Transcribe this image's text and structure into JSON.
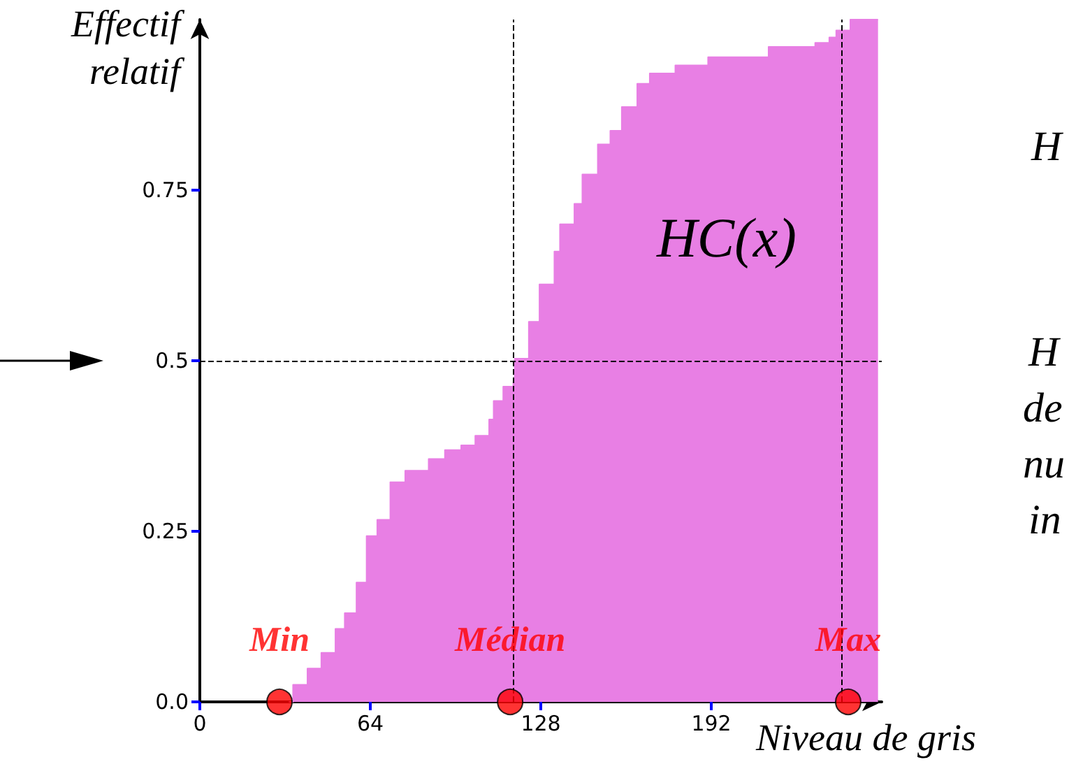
{
  "chart_data": {
    "type": "area",
    "xlabel": "Niveau de gris",
    "ylabel": "Effectif\nrelatif",
    "xlim": [
      0,
      256
    ],
    "xticks": [
      0,
      64,
      128,
      192
    ],
    "ylim": [
      0,
      1
    ],
    "yticks": [
      {
        "value": 0,
        "label": "0.0"
      },
      0.25,
      0.5,
      0.75
    ],
    "grid": false,
    "series": [
      {
        "color": "#e87fe4",
        "x": [
          33.4,
          35,
          35,
          40.4,
          40.4,
          45.6,
          45.6,
          50.9,
          50.9,
          54.4,
          54.4,
          58.8,
          58.8,
          62.6,
          62.6,
          66.6,
          66.6,
          71.5,
          71.5,
          77.1,
          77.1,
          85.9,
          85.9,
          92,
          92,
          98.1,
          98.1,
          103.4,
          103.4,
          108.6,
          108.6,
          110.3,
          110.3,
          113.9,
          113.9,
          117.7,
          117.7,
          118.2,
          118.2,
          123.5,
          123.5,
          127.5,
          127.5,
          133.1,
          133.1,
          135.2,
          135.2,
          140.6,
          140.6,
          143.6,
          143.6,
          149.4,
          149.4,
          154.1,
          154.1,
          158.4,
          158.4,
          164.2,
          164.2,
          168.9,
          168.9,
          178.5,
          178.5,
          190.8,
          190.8,
          213.5,
          213.5,
          231,
          231,
          236.3,
          236.3,
          238.9,
          238.9,
          244.2,
          244.2,
          254.6
        ],
        "values": [
          0,
          0,
          0.025,
          0.025,
          0.049,
          0.049,
          0.072,
          0.072,
          0.107,
          0.107,
          0.13,
          0.13,
          0.175,
          0.175,
          0.243,
          0.243,
          0.267,
          0.267,
          0.322,
          0.322,
          0.339,
          0.339,
          0.356,
          0.356,
          0.369,
          0.369,
          0.376,
          0.376,
          0.39,
          0.39,
          0.414,
          0.414,
          0.441,
          0.441,
          0.462,
          0.462,
          0.469,
          0.469,
          0.503,
          0.503,
          0.557,
          0.557,
          0.612,
          0.612,
          0.66,
          0.66,
          0.7,
          0.7,
          0.73,
          0.73,
          0.773,
          0.773,
          0.817,
          0.817,
          0.837,
          0.837,
          0.872,
          0.872,
          0.906,
          0.906,
          0.921,
          0.921,
          0.933,
          0.933,
          0.945,
          0.945,
          0.96,
          0.96,
          0.966,
          0.966,
          0.974,
          0.974,
          0.984,
          0.984,
          1,
          1
        ]
      },
      {
        "type": "scatter",
        "color": "#ff0000",
        "marker": "circle",
        "x": [
          29.9,
          116.5,
          243.4
        ],
        "values": [
          0,
          0,
          0
        ],
        "value_labels": [
          "Min",
          "Médian",
          "Max"
        ]
      }
    ],
    "ref_lines": [
      {
        "axis": "y",
        "value": 0.5,
        "line_style": "dashed",
        "color": "#000000"
      },
      {
        "axis": "x",
        "value": 117.5,
        "line_style": "dashed",
        "color": "#000000"
      },
      {
        "axis": "x",
        "value": 240.8,
        "line_style": "dashed",
        "color": "#000000"
      }
    ],
    "annotations": [
      "HC(x)",
      "H",
      "H",
      "de",
      "nu",
      "in"
    ]
  }
}
